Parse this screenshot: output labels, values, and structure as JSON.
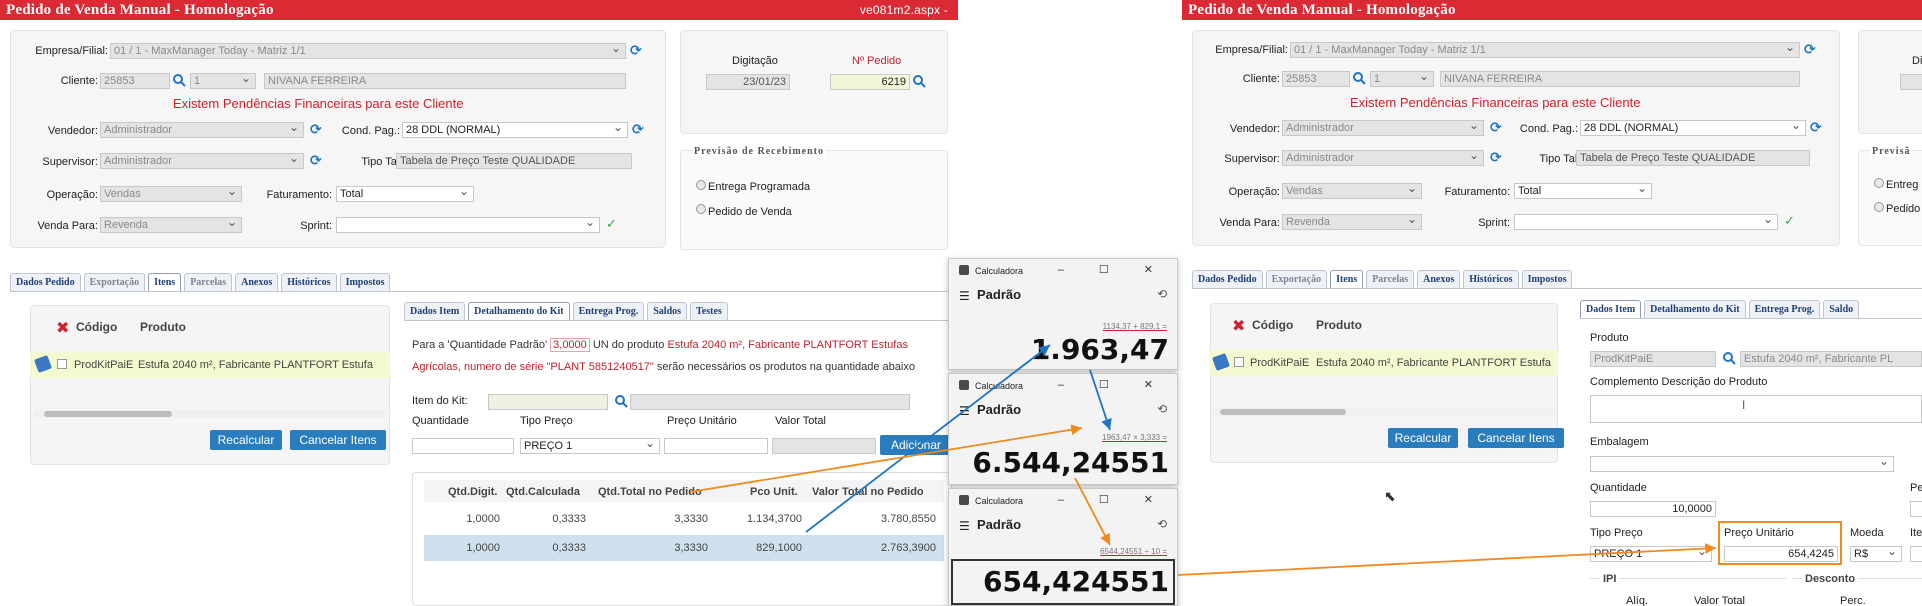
{
  "left": {
    "title": "Pedido de Venda Manual  - Homologação",
    "page_file": "ve081m2.aspx -",
    "labels": {
      "empresa": "Empresa/Filial:",
      "cliente": "Cliente:",
      "vendedor": "Vendedor:",
      "cond_pag": "Cond. Pag.:",
      "supervisor": "Supervisor:",
      "tipo_tab": "Tipo Tab:",
      "operacao": "Operação:",
      "faturamento": "Faturamento:",
      "venda_para": "Venda Para:",
      "sprint": "Sprint:",
      "digitacao": "Digitação",
      "n_pedido": "Nº Pedido"
    },
    "values": {
      "empresa": "01 / 1 - MaxManager Today - Matriz 1/1",
      "cliente_code": "25853",
      "cliente_seq": "1",
      "cliente_name": "NIVANA FERREIRA",
      "vendedor": "Administrador",
      "cond_pag": "28 DDL (NORMAL)",
      "supervisor": "Administrador",
      "tipo_tab": "Tabela de Preço Teste QUALIDADE",
      "operacao": "Vendas",
      "faturamento": "Total",
      "venda_para": "Revenda",
      "sprint": "",
      "digitacao": "23/01/23",
      "n_pedido": "6219"
    },
    "alert": "Existem Pendências Financeiras para este Cliente",
    "previsao": {
      "legend": "Previsão de Recebimento",
      "opt1": "Entrega Programada",
      "opt2": "Pedido de Venda"
    },
    "tabs": [
      "Dados Pedido",
      "Exportação",
      "Itens",
      "Parcelas",
      "Anexos",
      "Históricos",
      "Impostos"
    ],
    "items_table": {
      "col_codigo": "Código",
      "col_produto": "Produto",
      "row_code": "ProdKitPaiE",
      "row_product": "Estufa 2040 m², Fabricante PLANTFORT Estufa"
    },
    "buttons": {
      "recalcular": "Recalcular",
      "cancelar": "Cancelar Itens",
      "adicionar": "Adicionar"
    },
    "subtabs": [
      "Dados Item",
      "Detalhamento do Kit",
      "Entrega Prog.",
      "Saldos",
      "Testes"
    ],
    "kit_msg": {
      "part1": "Para a 'Quantidade Padrão'",
      "qty": "3,0000",
      "part2": "UN do produto",
      "product": "Estufa 2040 m², Fabricante PLANTFORT Estufas",
      "line2_prefix": "Agrícolas, numero de série",
      "serial": "\"PLANT 5851240517\"",
      "line2_suffix": "serão necessários os produtos na quantidade abaixo"
    },
    "kit_form": {
      "item_label": "Item do Kit:",
      "quantidade": "Quantidade",
      "tipo_preco": "Tipo Preço",
      "preco_unit": "Preço Unitário",
      "valor_total": "Valor Total",
      "tipo_preco_value": "PREÇO 1"
    },
    "kit_table": {
      "headers": [
        "Qtd.Digit.",
        "Qtd.Calculada",
        "Qtd.Total no Pedido",
        "Pco Unit.",
        "Valor Total no Pedido"
      ],
      "rows": [
        [
          "1,0000",
          "0,3333",
          "3,3330",
          "1.134,3700",
          "3.780,8550"
        ],
        [
          "1,0000",
          "0,3333",
          "3,3330",
          "829,1000",
          "2.763,3900"
        ]
      ]
    }
  },
  "calculators": [
    {
      "title": "Calculadora",
      "mode": "Padrão",
      "expr": "1134,37 + 829,1 =",
      "result": "1.963,47"
    },
    {
      "title": "Calculadora",
      "mode": "Padrão",
      "expr": "1963,47 × 3,333 =",
      "result": "6.544,24551"
    },
    {
      "title": "Calculadora",
      "mode": "Padrão",
      "expr": "6544,24551 ÷ 10 =",
      "result": "654,424551"
    }
  ],
  "right": {
    "title": "Pedido de Venda Manual  - Homologação",
    "labels": {
      "empresa": "Empresa/Filial:",
      "cliente": "Cliente:",
      "vendedor": "Vendedor:",
      "cond_pag": "Cond. Pag.:",
      "supervisor": "Supervisor:",
      "tipo_tab": "Tipo Tab:",
      "operacao": "Operação:",
      "faturamento": "Faturamento:",
      "venda_para": "Venda Para:",
      "sprint": "Sprint:",
      "digitacao_partial": "Di"
    },
    "values": {
      "empresa": "01 / 1 - MaxManager Today - Matriz 1/1",
      "cliente_code": "25853",
      "cliente_seq": "1",
      "cliente_name": "NIVANA FERREIRA",
      "vendedor": "Administrador",
      "cond_pag": "28 DDL (NORMAL)",
      "supervisor": "Administrador",
      "tipo_tab": "Tabela de Preço Teste QUALIDADE",
      "operacao": "Vendas",
      "faturamento": "Total",
      "venda_para": "Revenda",
      "digitacao_partial": "2"
    },
    "alert": "Existem Pendências Financeiras para este Cliente",
    "previsao": {
      "legend": "Previsã",
      "opt1": "Entreg",
      "opt2": "Pedido"
    },
    "tabs": [
      "Dados Pedido",
      "Exportação",
      "Itens",
      "Parcelas",
      "Anexos",
      "Históricos",
      "Impostos"
    ],
    "items_table": {
      "col_codigo": "Código",
      "col_produto": "Produto",
      "row_code": "ProdKitPaiE",
      "row_product": "Estufa 2040 m², Fabricante PLANTFORT Estufa"
    },
    "buttons": {
      "recalcular": "Recalcular",
      "cancelar": "Cancelar Itens"
    },
    "subtabs": [
      "Dados Item",
      "Detalhamento do Kit",
      "Entrega Prog.",
      "Saldo"
    ],
    "item_form": {
      "produto": "Produto",
      "produto_code": "ProdKitPaiE",
      "produto_desc": "Estufa 2040 m², Fabricante PL",
      "complemento": "Complemento Descrição do Produto",
      "embalagem": "Embalagem",
      "quantidade": "Quantidade",
      "quantidade_value": "10,0000",
      "pe_partial": "Pe",
      "tipo_preco": "Tipo Preço",
      "tipo_preco_value": "PREÇO 1",
      "preco_unit": "Preço Unitário",
      "preco_unit_value": "654,4245",
      "moeda": "Moeda",
      "moeda_value": "R$",
      "ite_partial": "Ite",
      "ipi": "IPI",
      "aliq": "Alíq.",
      "valor_total": "Valor Total",
      "desconto": "Desconto",
      "perc": "Perc."
    }
  },
  "colors": {
    "title_bg": "#dc2a35",
    "accent_blue": "#2a7dbc",
    "annotation_orange": "#f08a1c",
    "annotation_blue": "#1f74c6",
    "alert_red": "#d0202b"
  }
}
